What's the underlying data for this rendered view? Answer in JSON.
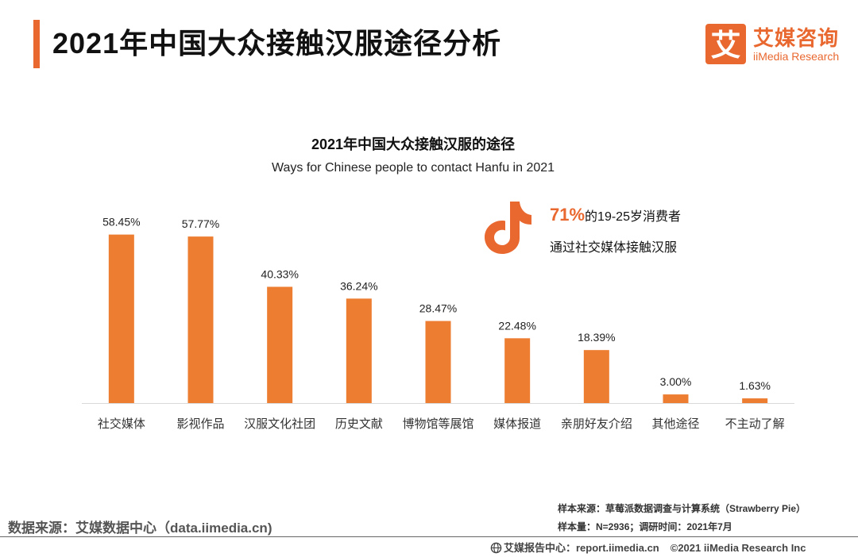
{
  "header": {
    "title": "2021年中国大众接触汉服途径分析",
    "logo_cn": "艾媒咨询",
    "logo_en": "iiMedia Research",
    "logo_mark": "艾"
  },
  "chart_data": {
    "type": "bar",
    "title": "2021年中国大众接触汉服的途径",
    "subtitle": "Ways for Chinese people to contact Hanfu in 2021",
    "categories": [
      "社交媒体",
      "影视作品",
      "汉服文化社团",
      "历史文献",
      "博物馆等展馆",
      "媒体报道",
      "亲朋好友介绍",
      "其他途径",
      "不主动了解"
    ],
    "values": [
      58.45,
      57.77,
      40.33,
      36.24,
      28.47,
      22.48,
      18.39,
      3.0,
      1.63
    ],
    "value_labels": [
      "58.45%",
      "57.77%",
      "40.33%",
      "36.24%",
      "28.47%",
      "22.48%",
      "18.39%",
      "3.00%",
      "1.63%"
    ],
    "unit": "%",
    "ylim": [
      0,
      60
    ],
    "grid": false,
    "bar_color": "#ed7d31"
  },
  "callout": {
    "icon": "tiktok-icon",
    "percent": "71%",
    "line1_rest": "的19-25岁消费者",
    "line2": "通过社交媒体接触汉服"
  },
  "footer": {
    "data_source": "数据来源：艾媒数据中心（data.iimedia.cn)",
    "sample_source": "样本来源：草莓派数据调查与计算系统（Strawberry Pie）",
    "sample_size": "样本量：N=2936；调研时间：2021年7月",
    "report_center": "艾媒报告中心：report.iimedia.cn",
    "copyright": "©2021  iiMedia Research  Inc"
  },
  "colors": {
    "accent": "#e9682f",
    "bar": "#ed7d31"
  }
}
